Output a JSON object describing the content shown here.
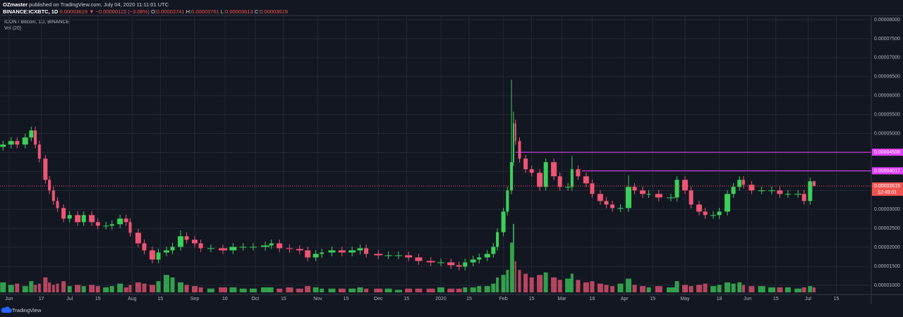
{
  "header": {
    "author": "OZmaster",
    "published": "published on TradingView.com, July 04, 2020 11:11:01 UTC",
    "symbol": "BINANCE:ICXBTC, 1D",
    "last": "0.00003619",
    "change": "▼ −0.00000115 (−3.08%)",
    "ohlc": [
      {
        "key": "O:",
        "value": "0.00003741"
      },
      {
        "key": "H:",
        "value": "0.00003761"
      },
      {
        "key": "L:",
        "value": "0.00003613"
      },
      {
        "key": "C:",
        "value": "0.00003619"
      }
    ]
  },
  "chart_data": {
    "type": "candlestick",
    "title": "ICON / Bitcoin, 1D, BINANCE",
    "volume_title": "Vol (20)",
    "up_color": "#3ccf5a",
    "down_color": "#ef5574",
    "grid": true,
    "xlim": [
      -4.5,
      427.3
    ],
    "xticks": [
      {
        "value": 0,
        "label": "Jun"
      },
      {
        "value": 16,
        "label": "17"
      },
      {
        "value": 30,
        "label": "Jul"
      },
      {
        "value": 44,
        "label": "15"
      },
      {
        "value": 61,
        "label": "Aug"
      },
      {
        "value": 75,
        "label": "15"
      },
      {
        "value": 92,
        "label": "Sep"
      },
      {
        "value": 107,
        "label": "16"
      },
      {
        "value": 122,
        "label": "Oct"
      },
      {
        "value": 136,
        "label": "15"
      },
      {
        "value": 153,
        "label": "Nov"
      },
      {
        "value": 167,
        "label": "15"
      },
      {
        "value": 183,
        "label": "Dec"
      },
      {
        "value": 197,
        "label": "15"
      },
      {
        "value": 214,
        "label": "2020"
      },
      {
        "value": 228,
        "label": "15"
      },
      {
        "value": 245,
        "label": "Feb"
      },
      {
        "value": 259,
        "label": "15"
      },
      {
        "value": 274,
        "label": "Mar"
      },
      {
        "value": 289,
        "label": "16"
      },
      {
        "value": 305,
        "label": "Apr"
      },
      {
        "value": 319,
        "label": "15"
      },
      {
        "value": 335,
        "label": "May"
      },
      {
        "value": 352,
        "label": "18"
      },
      {
        "value": 366,
        "label": "Jun"
      },
      {
        "value": 380,
        "label": "15"
      },
      {
        "value": 396,
        "label": "Jul"
      },
      {
        "value": 410,
        "label": "15"
      }
    ],
    "ylim": [
      7.59e-06,
      8.111e-05
    ],
    "yticks": [
      {
        "value": 1e-05,
        "label": "0.00001000"
      },
      {
        "value": 1.5e-05,
        "label": "0.00001500"
      },
      {
        "value": 2e-05,
        "label": "0.00002000"
      },
      {
        "value": 2.5e-05,
        "label": "0.00002500"
      },
      {
        "value": 3e-05,
        "label": "0.00003000"
      },
      {
        "value": 3.5e-05,
        "label": "0.00003500"
      },
      {
        "value": 4e-05,
        "label": "0.00004000"
      },
      {
        "value": 4.5e-05,
        "label": "0.00004500"
      },
      {
        "value": 5e-05,
        "label": "0.00005000"
      },
      {
        "value": 5.5e-05,
        "label": "0.00005500"
      },
      {
        "value": 6e-05,
        "label": "0.00006000"
      },
      {
        "value": 6.5e-05,
        "label": "0.00006500"
      },
      {
        "value": 7e-05,
        "label": "0.00007000"
      },
      {
        "value": 7.5e-05,
        "label": "0.00007500"
      },
      {
        "value": 8e-05,
        "label": "0.00008000"
      }
    ],
    "levels": [
      {
        "value": 4.508e-05,
        "label": "0.00004508",
        "from": 251,
        "color": "#e040fb"
      },
      {
        "value": 4.017e-05,
        "label": "0.00004017",
        "from": 284,
        "color": "#e040fb"
      }
    ],
    "last_price": {
      "value": 3.619e-05,
      "label": "0.00003619",
      "countdown": "12:49:01",
      "color": "#ef5350"
    },
    "vlim": [
      0,
      60
    ],
    "x": [
      -3,
      1,
      4,
      8,
      11,
      13,
      15,
      18,
      20,
      22,
      24,
      27,
      30,
      34,
      37,
      41,
      44,
      48,
      51,
      55,
      58,
      60,
      64,
      67,
      71,
      74,
      78,
      81,
      85,
      88,
      92,
      95,
      100,
      106,
      111,
      116,
      121,
      127,
      130,
      134,
      139,
      144,
      148,
      152,
      155,
      160,
      165,
      170,
      174,
      177,
      183,
      188,
      193,
      198,
      203,
      209,
      214,
      219,
      223,
      226,
      230,
      233,
      237,
      240,
      242,
      245,
      247,
      249,
      250,
      251,
      253,
      256,
      259,
      263,
      266,
      270,
      273,
      277,
      279,
      282,
      286,
      289,
      293,
      296,
      299,
      303,
      307,
      310,
      314,
      317,
      322,
      328,
      331,
      335,
      338,
      342,
      345,
      349,
      352,
      356,
      359,
      362,
      364,
      368,
      373,
      378,
      382,
      386,
      391,
      394,
      397,
      399
    ],
    "open": [
      4.65e-05,
      4.71e-05,
      4.803e-05,
      4.71e-05,
      4.896e-05,
      5.081e-05,
      4.71e-05,
      4.338e-05,
      3.78e-05,
      3.501e-05,
      3.222e-05,
      3.036e-05,
      2.758e-05,
      2.851e-05,
      2.665e-05,
      2.851e-05,
      2.665e-05,
      2.572e-05,
      2.572e-05,
      2.61e-05,
      2.758e-05,
      2.665e-05,
      2.386e-05,
      2.107e-05,
      1.921e-05,
      1.679e-05,
      1.865e-05,
      1.921e-05,
      2.014e-05,
      2.293e-05,
      2.2e-05,
      2.107e-05,
      1.977e-05,
      1.977e-05,
      1.921e-05,
      2.014e-05,
      2.014e-05,
      2.014e-05,
      2.051e-05,
      2.107e-05,
      1.977e-05,
      1.958e-05,
      1.921e-05,
      1.735e-05,
      1.828e-05,
      1.865e-05,
      1.921e-05,
      1.865e-05,
      1.921e-05,
      1.977e-05,
      1.828e-05,
      1.791e-05,
      1.791e-05,
      1.791e-05,
      1.735e-05,
      1.642e-05,
      1.605e-05,
      1.605e-05,
      1.53e-05,
      1.493e-05,
      1.605e-05,
      1.679e-05,
      1.735e-05,
      1.828e-05,
      2.014e-05,
      2.4e-05,
      2.943e-05,
      3.501e-05,
      4.245e-05,
      5.267e-05,
      4.803e-05,
      4.338e-05,
      4.059e-05,
      3.966e-05,
      3.594e-05,
      4.245e-05,
      3.873e-05,
      3.594e-05,
      3.594e-05,
      4.059e-05,
      3.873e-05,
      3.687e-05,
      3.408e-05,
      3.222e-05,
      3.129e-05,
      3.036e-05,
      3.036e-05,
      3.594e-05,
      3.501e-05,
      3.408e-05,
      3.408e-05,
      3.315e-05,
      3.315e-05,
      3.78e-05,
      3.501e-05,
      3.129e-05,
      2.943e-05,
      2.851e-05,
      2.851e-05,
      2.943e-05,
      3.408e-05,
      3.594e-05,
      3.78e-05,
      3.65e-05,
      3.501e-05,
      3.501e-05,
      3.501e-05,
      3.408e-05,
      3.408e-05,
      3.408e-05,
      3.222e-05,
      3.741e-05
    ],
    "high": [
      4.81e-05,
      4.903e-05,
      4.903e-05,
      4.996e-05,
      5.181e-05,
      5.181e-05,
      4.81e-05,
      4.438e-05,
      3.88e-05,
      3.601e-05,
      3.322e-05,
      3.136e-05,
      2.951e-05,
      2.951e-05,
      2.951e-05,
      2.951e-05,
      2.765e-05,
      2.672e-05,
      2.71e-05,
      2.858e-05,
      2.858e-05,
      2.765e-05,
      2.486e-05,
      2.207e-05,
      2.021e-05,
      1.965e-05,
      2.021e-05,
      2.114e-05,
      2.45e-05,
      2.393e-05,
      2.3e-05,
      2.207e-05,
      2.077e-05,
      2.077e-05,
      2.114e-05,
      2.114e-05,
      2.114e-05,
      2.151e-05,
      2.207e-05,
      2.207e-05,
      2.077e-05,
      2.058e-05,
      2.021e-05,
      1.928e-05,
      1.965e-05,
      2.021e-05,
      2.021e-05,
      2.021e-05,
      2.077e-05,
      2.077e-05,
      1.928e-05,
      1.891e-05,
      1.891e-05,
      1.891e-05,
      1.835e-05,
      1.742e-05,
      1.705e-05,
      1.705e-05,
      1.63e-05,
      1.705e-05,
      1.779e-05,
      1.835e-05,
      1.928e-05,
      2.114e-05,
      2.5e-05,
      3.043e-05,
      3.601e-05,
      6.42e-05,
      5.58e-05,
      5.367e-05,
      4.903e-05,
      4.438e-05,
      4.159e-05,
      4.066e-05,
      4.345e-05,
      4.345e-05,
      3.973e-05,
      3.694e-05,
      4.4e-05,
      4.159e-05,
      3.973e-05,
      3.787e-05,
      3.508e-05,
      3.322e-05,
      3.229e-05,
      3.136e-05,
      3.9e-05,
      3.694e-05,
      3.601e-05,
      3.508e-05,
      3.508e-05,
      3.415e-05,
      3.88e-05,
      3.88e-05,
      3.601e-05,
      3.229e-05,
      3.043e-05,
      2.951e-05,
      3.043e-05,
      3.508e-05,
      3.694e-05,
      3.88e-05,
      3.88e-05,
      3.75e-05,
      3.601e-05,
      3.601e-05,
      3.601e-05,
      3.508e-05,
      3.508e-05,
      3.508e-05,
      3.841e-05,
      3.761e-05
    ],
    "low": [
      4.55e-05,
      4.61e-05,
      4.61e-05,
      4.61e-05,
      4.796e-05,
      4.61e-05,
      4.238e-05,
      3.68e-05,
      3.401e-05,
      3.122e-05,
      2.936e-05,
      2.658e-05,
      2.658e-05,
      2.565e-05,
      2.565e-05,
      2.565e-05,
      2.472e-05,
      2.472e-05,
      2.472e-05,
      2.51e-05,
      2.565e-05,
      2.286e-05,
      2.007e-05,
      1.821e-05,
      1.579e-05,
      1.579e-05,
      1.765e-05,
      1.821e-05,
      1.914e-05,
      2.1e-05,
      2.007e-05,
      1.877e-05,
      1.877e-05,
      1.821e-05,
      1.821e-05,
      1.914e-05,
      1.914e-05,
      1.914e-05,
      1.951e-05,
      1.877e-05,
      1.858e-05,
      1.821e-05,
      1.635e-05,
      1.635e-05,
      1.728e-05,
      1.765e-05,
      1.765e-05,
      1.765e-05,
      1.821e-05,
      1.728e-05,
      1.691e-05,
      1.691e-05,
      1.691e-05,
      1.635e-05,
      1.542e-05,
      1.505e-05,
      1.505e-05,
      1.43e-05,
      1.393e-05,
      1.393e-05,
      1.505e-05,
      1.579e-05,
      1.635e-05,
      1.728e-05,
      1.914e-05,
      2.3e-05,
      2.843e-05,
      3.401e-05,
      4.145e-05,
      4.703e-05,
      4.238e-05,
      3.959e-05,
      3.866e-05,
      3.494e-05,
      3.494e-05,
      3.773e-05,
      3.494e-05,
      3.494e-05,
      3.494e-05,
      3.773e-05,
      3.587e-05,
      3.308e-05,
      3.122e-05,
      3.029e-05,
      2.936e-05,
      2.936e-05,
      2.936e-05,
      3.401e-05,
      3.308e-05,
      3.308e-05,
      3.215e-05,
      3.215e-05,
      3.215e-05,
      3.401e-05,
      3.029e-05,
      2.843e-05,
      2.751e-05,
      2.751e-05,
      2.751e-05,
      2.843e-05,
      3.308e-05,
      3.494e-05,
      3.55e-05,
      3.401e-05,
      3.401e-05,
      3.401e-05,
      3.308e-05,
      3.308e-05,
      3.308e-05,
      3.122e-05,
      3.122e-05,
      3.613e-05
    ],
    "close": [
      4.71e-05,
      4.803e-05,
      4.71e-05,
      4.896e-05,
      5.081e-05,
      4.71e-05,
      4.338e-05,
      3.78e-05,
      3.501e-05,
      3.222e-05,
      3.036e-05,
      2.758e-05,
      2.851e-05,
      2.665e-05,
      2.851e-05,
      2.665e-05,
      2.572e-05,
      2.572e-05,
      2.61e-05,
      2.758e-05,
      2.665e-05,
      2.386e-05,
      2.107e-05,
      1.921e-05,
      1.679e-05,
      1.865e-05,
      1.921e-05,
      2.014e-05,
      2.293e-05,
      2.2e-05,
      2.107e-05,
      1.977e-05,
      1.977e-05,
      1.921e-05,
      2.014e-05,
      2.014e-05,
      2.014e-05,
      2.051e-05,
      2.107e-05,
      1.977e-05,
      1.958e-05,
      1.921e-05,
      1.735e-05,
      1.828e-05,
      1.865e-05,
      1.921e-05,
      1.865e-05,
      1.921e-05,
      1.977e-05,
      1.828e-05,
      1.791e-05,
      1.791e-05,
      1.791e-05,
      1.735e-05,
      1.642e-05,
      1.605e-05,
      1.605e-05,
      1.53e-05,
      1.493e-05,
      1.605e-05,
      1.679e-05,
      1.735e-05,
      1.828e-05,
      2.014e-05,
      2.4e-05,
      2.943e-05,
      3.501e-05,
      4.245e-05,
      5.267e-05,
      4.803e-05,
      4.338e-05,
      4.059e-05,
      3.966e-05,
      3.594e-05,
      4.245e-05,
      3.873e-05,
      3.594e-05,
      3.594e-05,
      4.059e-05,
      3.873e-05,
      3.687e-05,
      3.408e-05,
      3.222e-05,
      3.129e-05,
      3.036e-05,
      3.036e-05,
      3.594e-05,
      3.501e-05,
      3.408e-05,
      3.408e-05,
      3.315e-05,
      3.315e-05,
      3.78e-05,
      3.501e-05,
      3.129e-05,
      2.943e-05,
      2.851e-05,
      2.851e-05,
      2.943e-05,
      3.408e-05,
      3.594e-05,
      3.78e-05,
      3.65e-05,
      3.501e-05,
      3.501e-05,
      3.501e-05,
      3.408e-05,
      3.408e-05,
      3.408e-05,
      3.222e-05,
      3.741e-05,
      3.619e-05
    ],
    "volume": [
      8,
      6,
      7,
      5,
      9,
      6,
      7,
      12,
      8,
      6,
      7,
      9,
      5,
      6,
      5,
      6,
      5,
      4,
      5,
      7,
      4,
      6,
      8,
      7,
      6,
      9,
      14,
      12,
      8,
      6,
      5,
      4,
      3,
      4,
      4,
      3,
      3,
      4,
      4,
      3,
      4,
      3,
      5,
      4,
      3,
      3,
      3,
      3,
      4,
      3,
      3,
      3,
      2,
      3,
      3,
      3,
      4,
      3,
      3,
      4,
      4,
      5,
      5,
      7,
      12,
      14,
      18,
      40,
      55,
      25,
      18,
      15,
      12,
      14,
      16,
      12,
      10,
      11,
      15,
      10,
      8,
      9,
      7,
      6,
      5,
      7,
      11,
      6,
      5,
      4,
      5,
      4,
      9,
      6,
      5,
      6,
      7,
      5,
      6,
      8,
      7,
      8,
      6,
      5,
      5,
      4,
      4,
      4,
      3,
      4,
      5,
      4
    ]
  },
  "footer": {
    "brand": "TradingView"
  }
}
